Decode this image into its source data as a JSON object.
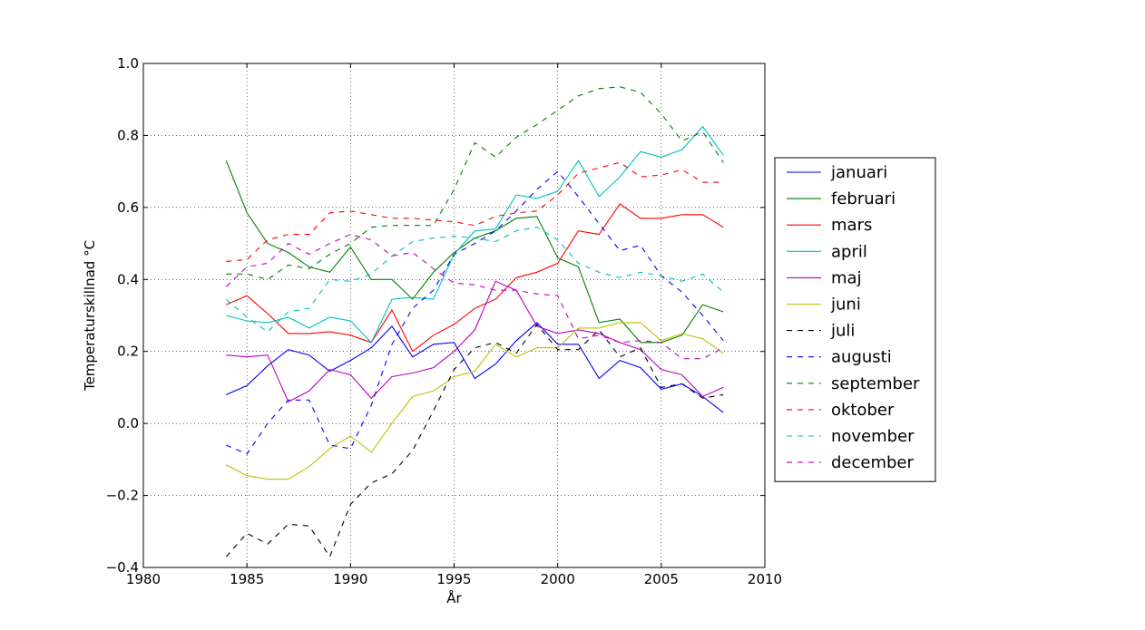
{
  "chart_data": {
    "type": "line",
    "title": "",
    "xlabel": "År",
    "ylabel": "Temperaturskillnad °C",
    "xlim": [
      1980,
      2010
    ],
    "ylim": [
      -0.4,
      1.0
    ],
    "xticks": [
      1980,
      1985,
      1990,
      1995,
      2000,
      2005,
      2010
    ],
    "yticks": [
      -0.4,
      -0.2,
      0.0,
      0.2,
      0.4,
      0.6,
      0.8,
      1.0
    ],
    "xtick_labels": [
      "1980",
      "1985",
      "1990",
      "1995",
      "2000",
      "2005",
      "2010"
    ],
    "ytick_labels": [
      "−0.4",
      "−0.2",
      "0.0",
      "0.2",
      "0.4",
      "0.6",
      "0.8",
      "1.0"
    ],
    "grid": true,
    "legend_position": "right-outside",
    "x": [
      1984,
      1985,
      1986,
      1987,
      1988,
      1989,
      1990,
      1991,
      1992,
      1993,
      1994,
      1995,
      1996,
      1997,
      1998,
      1999,
      2000,
      2001,
      2002,
      2003,
      2004,
      2005,
      2006,
      2007,
      2008
    ],
    "series": [
      {
        "name": "januari",
        "color": "#0000ff",
        "style": "solid",
        "values": [
          0.08,
          0.105,
          0.16,
          0.205,
          0.19,
          0.145,
          0.175,
          0.21,
          0.27,
          0.185,
          0.22,
          0.225,
          0.125,
          0.165,
          0.23,
          0.28,
          0.22,
          0.22,
          0.125,
          0.175,
          0.155,
          0.095,
          0.11,
          0.075,
          0.03
        ]
      },
      {
        "name": "februari",
        "color": "#008000",
        "style": "solid",
        "values": [
          0.73,
          0.585,
          0.5,
          0.475,
          0.435,
          0.42,
          0.49,
          0.4,
          0.4,
          0.345,
          0.42,
          0.475,
          0.515,
          0.535,
          0.57,
          0.575,
          0.46,
          0.435,
          0.28,
          0.29,
          0.225,
          0.225,
          0.245,
          0.33,
          0.31
        ]
      },
      {
        "name": "mars",
        "color": "#ff0000",
        "style": "solid",
        "values": [
          0.33,
          0.355,
          0.305,
          0.25,
          0.25,
          0.255,
          0.245,
          0.225,
          0.315,
          0.2,
          0.245,
          0.275,
          0.32,
          0.345,
          0.405,
          0.42,
          0.445,
          0.535,
          0.525,
          0.61,
          0.57,
          0.57,
          0.58,
          0.58,
          0.545
        ]
      },
      {
        "name": "april",
        "color": "#00bfbf",
        "style": "solid",
        "values": [
          0.3,
          0.285,
          0.28,
          0.295,
          0.265,
          0.295,
          0.285,
          0.225,
          0.345,
          0.35,
          0.345,
          0.47,
          0.535,
          0.54,
          0.635,
          0.625,
          0.645,
          0.73,
          0.63,
          0.685,
          0.755,
          0.74,
          0.76,
          0.825,
          0.745
        ]
      },
      {
        "name": "maj",
        "color": "#bf00bf",
        "style": "solid",
        "values": [
          0.19,
          0.185,
          0.19,
          0.06,
          0.09,
          0.15,
          0.135,
          0.07,
          0.13,
          0.14,
          0.155,
          0.2,
          0.26,
          0.395,
          0.37,
          0.27,
          0.25,
          0.26,
          0.25,
          0.225,
          0.205,
          0.15,
          0.135,
          0.075,
          0.1
        ]
      },
      {
        "name": "juni",
        "color": "#bfbf00",
        "style": "solid",
        "values": [
          -0.115,
          -0.145,
          -0.155,
          -0.155,
          -0.12,
          -0.07,
          -0.035,
          -0.08,
          0.0,
          0.075,
          0.09,
          0.13,
          0.145,
          0.22,
          0.185,
          0.21,
          0.21,
          0.265,
          0.265,
          0.28,
          0.28,
          0.23,
          0.25,
          0.235,
          0.195
        ]
      },
      {
        "name": "juli",
        "color": "#000000",
        "style": "dashed",
        "values": [
          -0.37,
          -0.305,
          -0.335,
          -0.28,
          -0.285,
          -0.37,
          -0.225,
          -0.165,
          -0.14,
          -0.075,
          0.035,
          0.15,
          0.21,
          0.225,
          0.195,
          0.275,
          0.205,
          0.205,
          0.26,
          0.185,
          0.21,
          0.1,
          0.11,
          0.07,
          0.08
        ]
      },
      {
        "name": "augusti",
        "color": "#0000ff",
        "style": "dashed",
        "values": [
          -0.06,
          -0.085,
          0.0,
          0.065,
          0.065,
          -0.06,
          -0.07,
          0.05,
          0.22,
          0.32,
          0.37,
          0.47,
          0.5,
          0.535,
          0.59,
          0.65,
          0.7,
          0.63,
          0.555,
          0.48,
          0.495,
          0.41,
          0.365,
          0.3,
          0.23
        ]
      },
      {
        "name": "september",
        "color": "#008000",
        "style": "dashed",
        "values": [
          0.415,
          0.415,
          0.4,
          0.44,
          0.43,
          0.47,
          0.5,
          0.545,
          0.55,
          0.55,
          0.55,
          0.65,
          0.78,
          0.74,
          0.795,
          0.83,
          0.87,
          0.91,
          0.93,
          0.935,
          0.92,
          0.86,
          0.785,
          0.81,
          0.725
        ]
      },
      {
        "name": "oktober",
        "color": "#ff0000",
        "style": "dashed",
        "values": [
          0.45,
          0.455,
          0.51,
          0.525,
          0.525,
          0.585,
          0.59,
          0.58,
          0.57,
          0.57,
          0.565,
          0.56,
          0.55,
          0.575,
          0.585,
          0.59,
          0.635,
          0.695,
          0.71,
          0.725,
          0.685,
          0.69,
          0.705,
          0.67,
          0.67
        ]
      },
      {
        "name": "november",
        "color": "#00bfbf",
        "style": "dashed",
        "values": [
          0.345,
          0.295,
          0.255,
          0.31,
          0.32,
          0.4,
          0.395,
          0.415,
          0.465,
          0.505,
          0.515,
          0.52,
          0.515,
          0.505,
          0.535,
          0.545,
          0.51,
          0.445,
          0.42,
          0.405,
          0.42,
          0.41,
          0.395,
          0.415,
          0.365
        ]
      },
      {
        "name": "december",
        "color": "#bf00bf",
        "style": "dashed",
        "values": [
          0.38,
          0.435,
          0.445,
          0.5,
          0.47,
          0.5,
          0.525,
          0.51,
          0.465,
          0.475,
          0.43,
          0.39,
          0.385,
          0.37,
          0.37,
          0.36,
          0.355,
          0.235,
          0.245,
          0.225,
          0.23,
          0.225,
          0.18,
          0.18,
          0.21
        ]
      }
    ]
  }
}
